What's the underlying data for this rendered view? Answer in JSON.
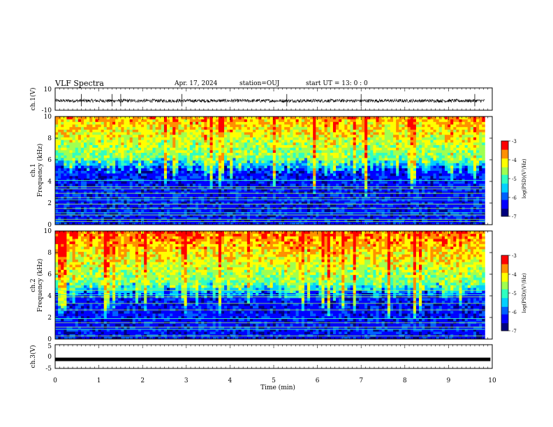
{
  "header": {
    "title": "VLF Spectra",
    "date": "Apr. 17, 2024",
    "station": "station=OUJ",
    "start_ut": "start  UT =  13: 0  : 0"
  },
  "chart_data": [
    {
      "type": "line",
      "name": "ch1-waveform",
      "ylabel": "ch.1(V)",
      "ylim": [
        -10,
        10
      ],
      "y_tick_labels": [
        "10",
        "-10"
      ],
      "baseline": -1.5,
      "noise_amplitude": 1.5,
      "spike_times_min": [
        0.6,
        1.3,
        1.5,
        2.9,
        5.3,
        7.0,
        9.6
      ]
    },
    {
      "type": "heatmap",
      "name": "ch1-spectrogram",
      "ylabel": "ch.1\nFrequency (kHz)",
      "ylim": [
        0,
        10
      ],
      "y_tick_labels": [
        "0",
        "2",
        "4",
        "6",
        "8",
        "10"
      ],
      "xlim": [
        0,
        10
      ],
      "data_end_min": 9.83,
      "colorbar": {
        "label": "log(PSD)(V²/Hz)",
        "range": [
          -7,
          -3
        ],
        "tick_labels": [
          "-3",
          "-4",
          "-5",
          "-6",
          "-7"
        ]
      },
      "cutoff_kHz_mean": 5.7,
      "horizontal_lines_kHz": [
        0.3,
        0.5,
        0.9,
        1.1,
        1.5,
        1.9,
        2.3,
        2.5,
        2.9,
        3.3,
        3.5,
        4.1
      ]
    },
    {
      "type": "heatmap",
      "name": "ch2-spectrogram",
      "ylabel": "ch.2\nFrequency (kHz)",
      "ylim": [
        0,
        10
      ],
      "y_tick_labels": [
        "0",
        "2",
        "4",
        "6",
        "8",
        "10"
      ],
      "xlim": [
        0,
        10
      ],
      "data_end_min": 9.83,
      "colorbar": {
        "label": "log(PSD)(V²/Hz)",
        "range": [
          -7,
          -3
        ],
        "tick_labels": [
          "-3",
          "-4",
          "-5",
          "-6",
          "-7"
        ]
      },
      "cutoff_kHz_mean": 4.8,
      "horizontal_lines_kHz": [
        0.3,
        0.9,
        1.1,
        1.5,
        1.9,
        2.7,
        3.3,
        3.9,
        4.1,
        4.5
      ]
    },
    {
      "type": "line",
      "name": "ch3-waveform",
      "ylabel": "ch.3(V)",
      "ylim": [
        -5,
        5
      ],
      "y_tick_labels": [
        "5",
        "0",
        "-5"
      ],
      "constant_value": -1.2,
      "xlim": [
        0,
        10
      ],
      "x_tick_labels": [
        "0",
        "1",
        "2",
        "3",
        "4",
        "5",
        "6",
        "7",
        "8",
        "9",
        "10"
      ],
      "xlabel": "Time (min)"
    }
  ],
  "colors": {
    "scale": [
      "#00007f",
      "#0000ff",
      "#0060ff",
      "#00d0ff",
      "#30ffc0",
      "#a0ff50",
      "#ffff00",
      "#ff9000",
      "#ff0000",
      "#ffffff"
    ],
    "line_color": "#000000"
  }
}
